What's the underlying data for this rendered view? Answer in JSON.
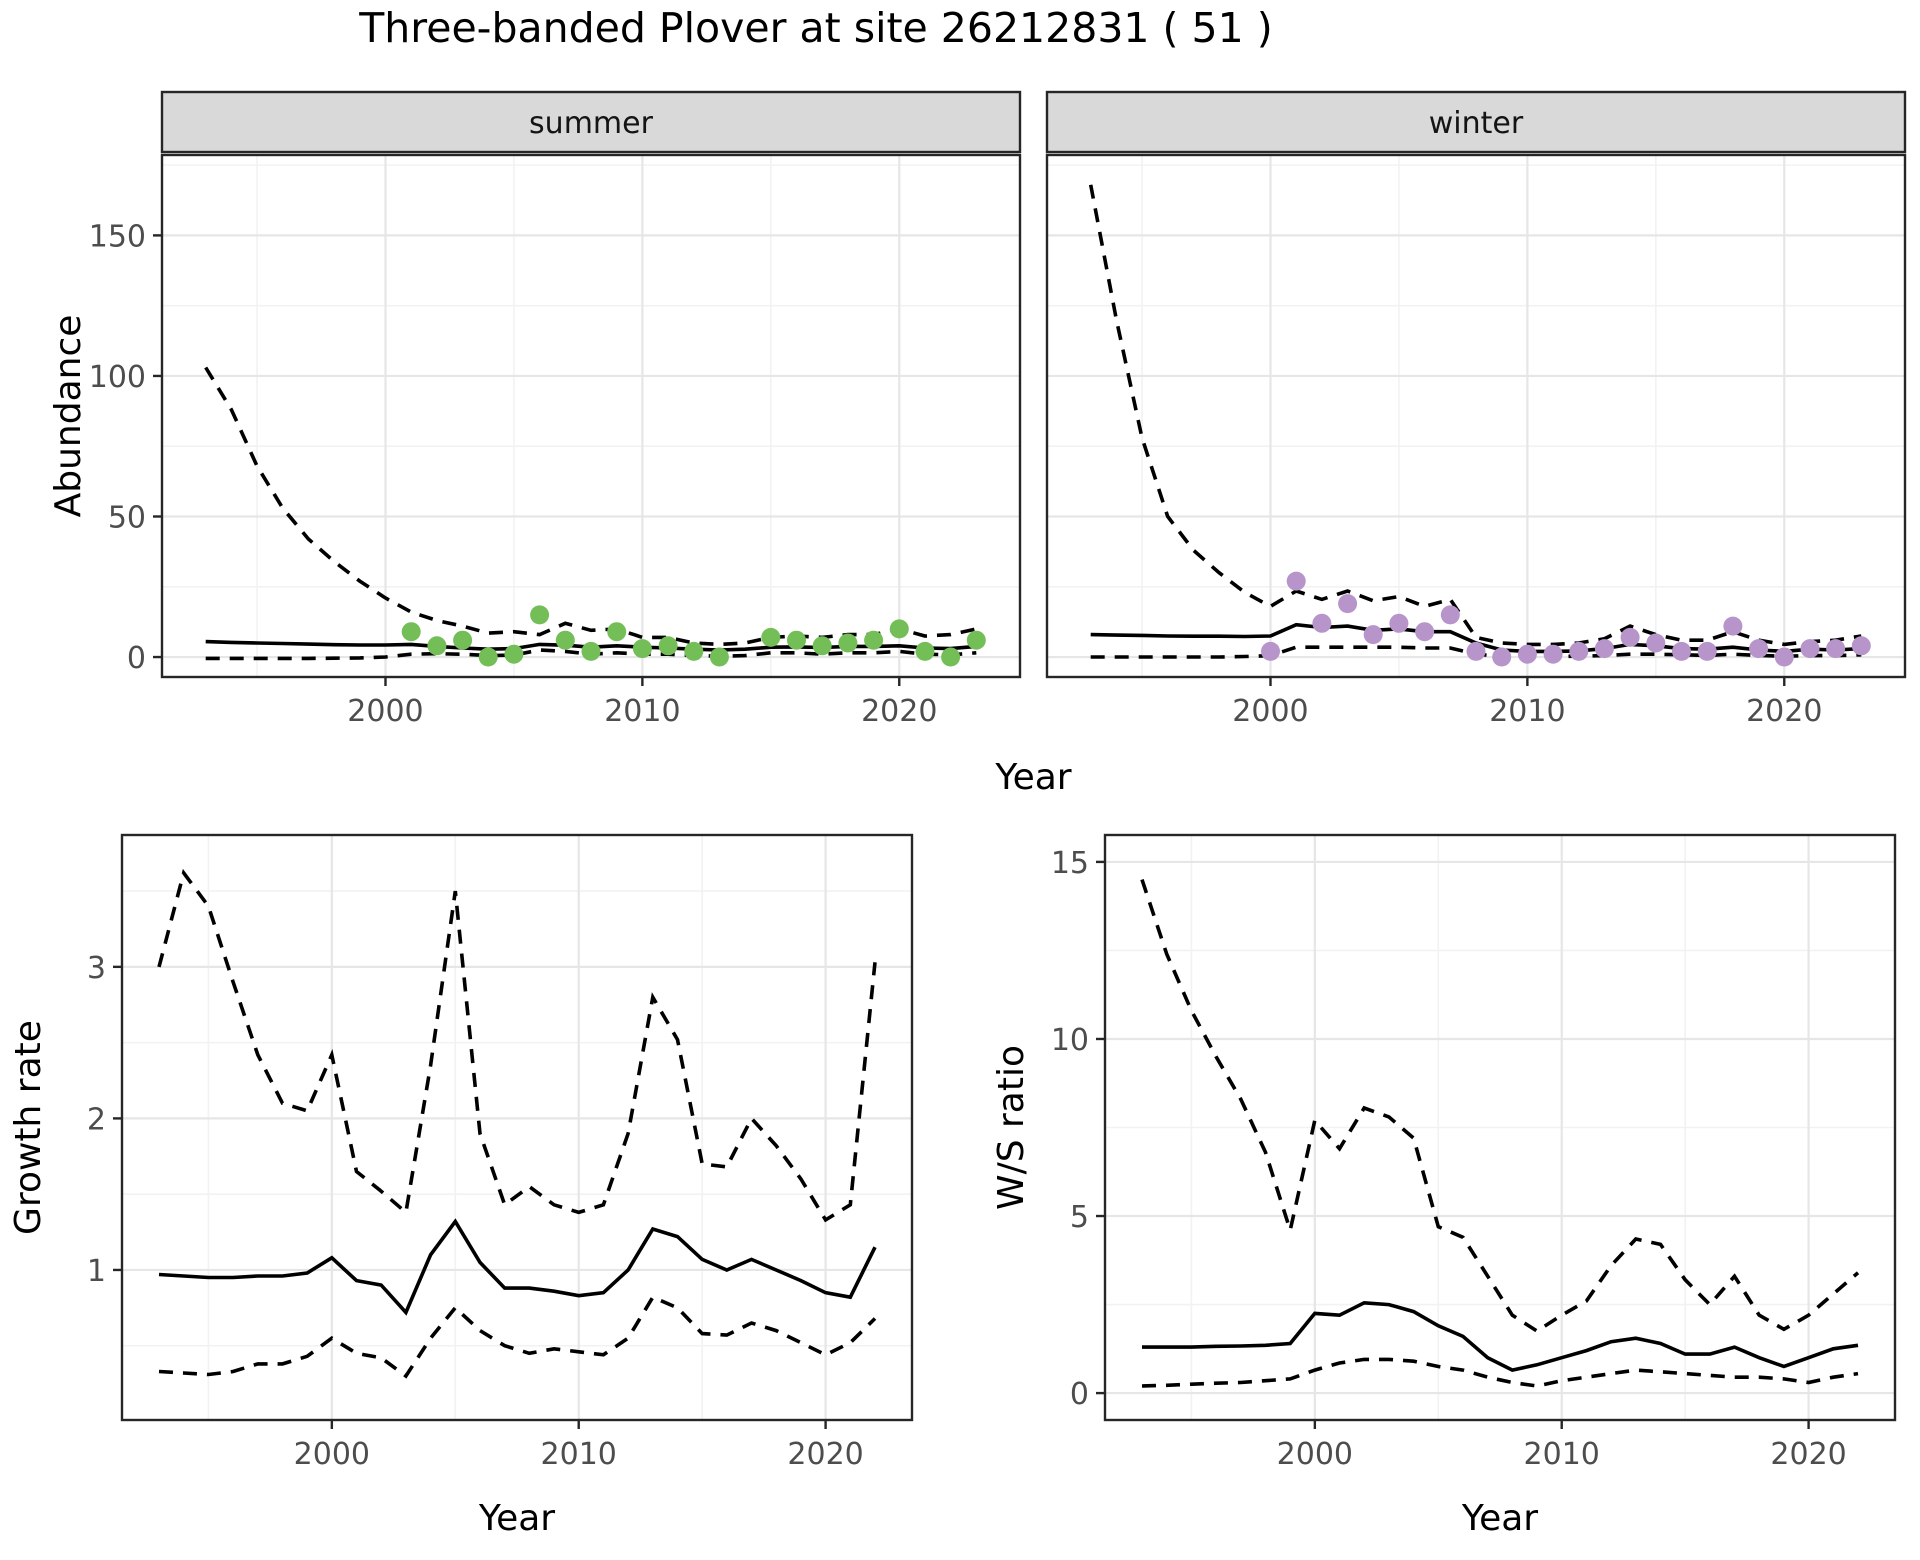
{
  "title": "Three-banded Plover at site 26212831 ( 51 )",
  "colors": {
    "summer_points": "#74BE58",
    "winter_points": "#B794C9",
    "line": "#000000",
    "strip_bg": "#D9D9D9",
    "panel_border": "#262626",
    "grid_major": "#E6E6E6",
    "grid_minor": "#F2F2F2",
    "tick_label": "#4D4D4D"
  },
  "chart_data": [
    {
      "id": "abundance-summer",
      "type": "line",
      "facet": "summer",
      "ylabel": "Abundance",
      "xlabel": "Year",
      "legend": "none",
      "grid": true,
      "xticks": [
        2000,
        2010,
        2020
      ],
      "yticks": [
        0,
        50,
        100,
        150
      ],
      "xlim": [
        1991.3,
        2024.7
      ],
      "ylim": [
        -7.1,
        178.6
      ],
      "x": [
        1993,
        1994,
        1995,
        1996,
        1997,
        1998,
        1999,
        2000,
        2001,
        2002,
        2003,
        2004,
        2005,
        2006,
        2007,
        2008,
        2009,
        2010,
        2011,
        2012,
        2013,
        2014,
        2015,
        2016,
        2017,
        2018,
        2019,
        2020,
        2021,
        2022,
        2023
      ],
      "series": [
        {
          "name": "median",
          "style": "solid",
          "values": [
            5.5,
            5.2,
            5.0,
            4.8,
            4.6,
            4.4,
            4.3,
            4.3,
            4.5,
            3.8,
            3.2,
            2.8,
            3.0,
            4.5,
            4.2,
            3.5,
            4.0,
            3.5,
            3.2,
            2.8,
            2.5,
            2.8,
            3.5,
            3.6,
            3.4,
            3.8,
            3.8,
            4.0,
            3.2,
            3.0,
            3.8
          ]
        },
        {
          "name": "upper-ci",
          "style": "dashed",
          "values": [
            103,
            88,
            68,
            53,
            42,
            34,
            27,
            21,
            16,
            13,
            11,
            8.5,
            9,
            8,
            12,
            9.5,
            10,
            7,
            7,
            5,
            4.5,
            5,
            7,
            7.5,
            7,
            8,
            8,
            10,
            7.5,
            8,
            10
          ]
        },
        {
          "name": "lower-ci",
          "style": "dashed",
          "values": [
            -0.5,
            -0.5,
            -0.5,
            -0.5,
            -0.5,
            -0.4,
            -0.3,
            0,
            1,
            1.2,
            1,
            0.5,
            0.7,
            2.5,
            2,
            1,
            1.5,
            1,
            1,
            0.5,
            0.3,
            0.5,
            1.5,
            1.5,
            1,
            1.5,
            1.5,
            2,
            1,
            0.8,
            1.5
          ]
        }
      ],
      "points": {
        "name": "observed-counts",
        "x": [
          2001,
          2002,
          2003,
          2004,
          2005,
          2006,
          2007,
          2008,
          2009,
          2010,
          2011,
          2012,
          2013,
          2015,
          2016,
          2017,
          2018,
          2019,
          2020,
          2021,
          2022,
          2023
        ],
        "y": [
          9,
          4,
          6,
          0,
          1,
          15,
          6,
          2,
          9,
          3,
          4,
          2,
          0,
          7,
          6,
          4,
          5,
          6,
          10,
          2,
          0,
          6
        ]
      }
    },
    {
      "id": "abundance-winter",
      "type": "line",
      "facet": "winter",
      "ylabel": "",
      "xlabel": "",
      "legend": "none",
      "grid": true,
      "xticks": [
        2000,
        2010,
        2020
      ],
      "yticks": [
        0,
        50,
        100,
        150
      ],
      "xlim": [
        1991.3,
        2024.7
      ],
      "ylim": [
        -7.1,
        178.6
      ],
      "x": [
        1993,
        1994,
        1995,
        1996,
        1997,
        1998,
        1999,
        2000,
        2001,
        2002,
        2003,
        2004,
        2005,
        2006,
        2007,
        2008,
        2009,
        2010,
        2011,
        2012,
        2013,
        2014,
        2015,
        2016,
        2017,
        2018,
        2019,
        2020,
        2021,
        2022,
        2023
      ],
      "series": [
        {
          "name": "median",
          "style": "solid",
          "values": [
            8,
            7.8,
            7.7,
            7.5,
            7.4,
            7.4,
            7.3,
            7.5,
            11.5,
            10.5,
            11,
            9.5,
            10,
            9,
            9,
            5,
            2.5,
            2,
            2,
            2.2,
            3,
            4.5,
            4,
            3,
            2.8,
            3.5,
            2.5,
            2,
            2.8,
            2.5,
            3
          ]
        },
        {
          "name": "upper-ci",
          "style": "dashed",
          "values": [
            168,
            120,
            78,
            50,
            38,
            30,
            23,
            18,
            23.5,
            20.5,
            23.5,
            20,
            21.5,
            18,
            20.5,
            7,
            5,
            4.5,
            4.5,
            5,
            6.5,
            11,
            8,
            6,
            6,
            9,
            6,
            4.5,
            5.5,
            6,
            7.5
          ]
        },
        {
          "name": "lower-ci",
          "style": "dashed",
          "values": [
            0,
            0,
            0,
            0,
            0,
            0,
            0.2,
            0.5,
            3.5,
            3.5,
            3.5,
            3.5,
            3.5,
            3.2,
            3.2,
            1,
            0.2,
            0.2,
            0.2,
            0.3,
            0.5,
            1,
            1,
            0.8,
            0.6,
            1,
            0.6,
            0.3,
            0.5,
            0.5,
            0.8
          ]
        }
      ],
      "points": {
        "name": "observed-counts",
        "x": [
          2000,
          2001,
          2002,
          2003,
          2004,
          2005,
          2006,
          2007,
          2008,
          2009,
          2010,
          2011,
          2012,
          2013,
          2014,
          2015,
          2016,
          2017,
          2018,
          2019,
          2020,
          2021,
          2022,
          2023
        ],
        "y": [
          2,
          27,
          12,
          19,
          8,
          12,
          9,
          15,
          2,
          0,
          1,
          1,
          2,
          3,
          7,
          5,
          2,
          2,
          11,
          3,
          0,
          3,
          3,
          4
        ]
      }
    },
    {
      "id": "growth-rate",
      "type": "line",
      "facet": "",
      "ylabel": "Growth rate",
      "xlabel": "Year",
      "legend": "none",
      "grid": true,
      "xticks": [
        2000,
        2010,
        2020
      ],
      "yticks": [
        1,
        2,
        3
      ],
      "xlim": [
        1991.5,
        2023.5
      ],
      "ylim": [
        0.01,
        3.87
      ],
      "x": [
        1993,
        1994,
        1995,
        1996,
        1997,
        1998,
        1999,
        2000,
        2001,
        2002,
        2003,
        2004,
        2005,
        2006,
        2007,
        2008,
        2009,
        2010,
        2011,
        2012,
        2013,
        2014,
        2015,
        2016,
        2017,
        2018,
        2019,
        2020,
        2021,
        2022
      ],
      "series": [
        {
          "name": "median",
          "style": "solid",
          "values": [
            0.97,
            0.96,
            0.95,
            0.95,
            0.96,
            0.96,
            0.98,
            1.08,
            0.93,
            0.9,
            0.72,
            1.1,
            1.32,
            1.05,
            0.88,
            0.88,
            0.86,
            0.83,
            0.85,
            1.0,
            1.27,
            1.22,
            1.07,
            1.0,
            1.07,
            1.0,
            0.93,
            0.85,
            0.82,
            1.15
          ]
        },
        {
          "name": "upper-ci",
          "style": "dashed",
          "values": [
            3.0,
            3.62,
            3.4,
            2.9,
            2.42,
            2.1,
            2.05,
            2.42,
            1.65,
            1.52,
            1.38,
            2.35,
            3.5,
            1.9,
            1.43,
            1.55,
            1.43,
            1.38,
            1.43,
            1.9,
            2.8,
            2.52,
            1.7,
            1.68,
            2.0,
            1.82,
            1.6,
            1.33,
            1.43,
            3.03
          ]
        },
        {
          "name": "lower-ci",
          "style": "dashed",
          "values": [
            0.33,
            0.32,
            0.31,
            0.33,
            0.38,
            0.38,
            0.43,
            0.55,
            0.45,
            0.42,
            0.3,
            0.55,
            0.75,
            0.6,
            0.5,
            0.45,
            0.48,
            0.46,
            0.44,
            0.55,
            0.82,
            0.75,
            0.58,
            0.57,
            0.65,
            0.6,
            0.52,
            0.44,
            0.52,
            0.68
          ]
        }
      ],
      "points": null
    },
    {
      "id": "ws-ratio",
      "type": "line",
      "facet": "",
      "ylabel": "W/S ratio",
      "xlabel": "Year",
      "legend": "none",
      "grid": true,
      "xticks": [
        2000,
        2010,
        2020
      ],
      "yticks": [
        0,
        5,
        10,
        15
      ],
      "xlim": [
        1991.5,
        2023.5
      ],
      "ylim": [
        -0.76,
        15.76
      ],
      "x": [
        1993,
        1994,
        1995,
        1996,
        1997,
        1998,
        1999,
        2000,
        2001,
        2002,
        2003,
        2004,
        2005,
        2006,
        2007,
        2008,
        2009,
        2010,
        2011,
        2012,
        2013,
        2014,
        2015,
        2016,
        2017,
        2018,
        2019,
        2020,
        2021,
        2022
      ],
      "series": [
        {
          "name": "median",
          "style": "solid",
          "values": [
            1.3,
            1.3,
            1.3,
            1.32,
            1.33,
            1.35,
            1.4,
            2.25,
            2.2,
            2.55,
            2.5,
            2.3,
            1.9,
            1.6,
            1.0,
            0.65,
            0.8,
            1.0,
            1.2,
            1.45,
            1.55,
            1.4,
            1.1,
            1.1,
            1.3,
            1.0,
            0.75,
            1.0,
            1.25,
            1.35
          ]
        },
        {
          "name": "upper-ci",
          "style": "dashed",
          "values": [
            14.5,
            12.4,
            10.8,
            9.5,
            8.3,
            6.8,
            4.6,
            7.7,
            6.9,
            8.05,
            7.8,
            7.2,
            4.7,
            4.4,
            3.3,
            2.2,
            1.75,
            2.2,
            2.6,
            3.6,
            4.35,
            4.2,
            3.2,
            2.5,
            3.3,
            2.2,
            1.8,
            2.2,
            2.8,
            3.4
          ]
        },
        {
          "name": "lower-ci",
          "style": "dashed",
          "values": [
            0.2,
            0.22,
            0.25,
            0.28,
            0.3,
            0.35,
            0.4,
            0.65,
            0.85,
            0.95,
            0.95,
            0.9,
            0.75,
            0.65,
            0.45,
            0.3,
            0.2,
            0.35,
            0.45,
            0.55,
            0.65,
            0.6,
            0.55,
            0.5,
            0.45,
            0.45,
            0.4,
            0.3,
            0.45,
            0.55
          ]
        }
      ],
      "points": null
    }
  ]
}
